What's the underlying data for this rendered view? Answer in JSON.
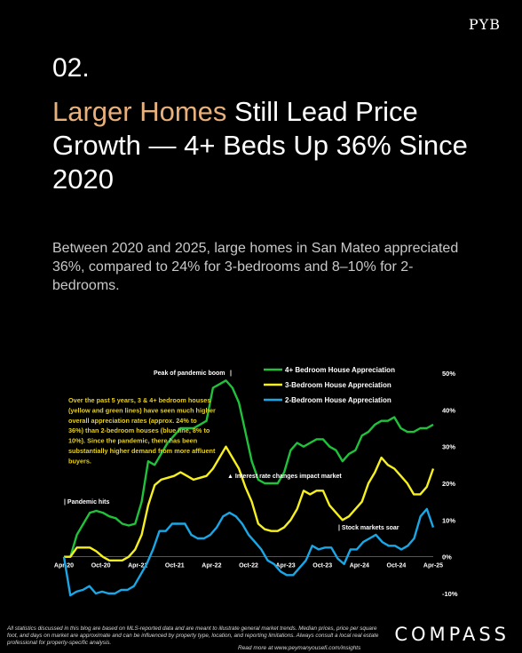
{
  "brand": {
    "logo": "PYB",
    "compass": "COMPASS"
  },
  "section_number": "02.",
  "headline": {
    "highlight": "Larger Homes",
    "rest": " Still Lead Price Growth — 4+ Beds Up 36% Since 2020"
  },
  "subtitle": "Between 2020 and 2025, large homes in San Mateo appreciated 36%, compared to 24% for 3-bedrooms and 8–10% for 2-bedrooms.",
  "footnote": "All statistics discussed in this blog are based on MLS-reported data and are meant to illustrate general market trends. Median prices, price per square foot, and days on market are approximate and can be influenced by property type, location, and reporting limitations. Always consult a local real estate professional for property-specific analysis.",
  "read_more": "Read more at www.peymanyousefi.com/insights",
  "colors": {
    "green": "#1fc23a",
    "yellow": "#f6f01e",
    "blue": "#1aa7e6",
    "accent": "#e8b07a",
    "annotation": "#e6cf1e"
  },
  "chart_data": {
    "type": "line",
    "x_ticks": [
      "Apr-20",
      "Oct-20",
      "Apr-21",
      "Oct-21",
      "Apr-22",
      "Oct-22",
      "Apr-23",
      "Oct-23",
      "Apr-24",
      "Oct-24",
      "Apr-25"
    ],
    "y_ticks": [
      "50%",
      "40%",
      "30%",
      "20%",
      "10%",
      "0%",
      "-10%"
    ],
    "ylim": [
      -10,
      50
    ],
    "y_unit": "%",
    "legend_position": "top-right",
    "series": [
      {
        "name": "4+ Bedroom House Appreciation",
        "color": "#1fc23a",
        "values": [
          0,
          0,
          6,
          9,
          12,
          12.5,
          12,
          11,
          10.5,
          9,
          8.5,
          9,
          15,
          26,
          25,
          28,
          31,
          33,
          35,
          35,
          35,
          36,
          37,
          46,
          47,
          48,
          46,
          42,
          34,
          26,
          21,
          20,
          20,
          20,
          23,
          29,
          31,
          30,
          31,
          32,
          32,
          30,
          29,
          26,
          28,
          29,
          33,
          34,
          36,
          37,
          37,
          38,
          35,
          34,
          34,
          35,
          35,
          36
        ]
      },
      {
        "name": "3-Bedroom House Appreciation",
        "color": "#f6f01e",
        "values": [
          0,
          0,
          2.5,
          2.5,
          2.5,
          1.5,
          0,
          -1,
          -1,
          -1,
          0,
          2,
          6,
          14,
          19.5,
          21,
          21.5,
          22,
          23,
          22,
          21,
          21.5,
          22,
          24,
          27,
          30,
          27,
          24,
          19,
          15,
          9,
          7.5,
          7,
          7,
          8,
          10,
          13,
          18,
          17,
          18,
          18,
          14,
          12,
          10,
          11,
          13,
          15,
          20,
          23,
          27,
          25,
          24,
          22,
          20,
          17,
          17,
          19,
          24
        ]
      },
      {
        "name": "2-Bedroom House Appreciation",
        "color": "#1aa7e6",
        "values": [
          0,
          -10.5,
          -9.5,
          -9,
          -8,
          -10,
          -9.5,
          -10,
          -10,
          -9,
          -9,
          -8,
          -5,
          -2,
          2,
          7,
          7,
          9,
          9,
          9,
          6,
          5,
          5,
          6,
          8,
          11,
          12,
          11,
          9,
          6,
          4,
          2,
          -1,
          -2,
          -4,
          -5,
          -5,
          -3,
          -1,
          3,
          2,
          2.5,
          2.5,
          -0.5,
          -2,
          2,
          2,
          4,
          5,
          6,
          4,
          3,
          3,
          2,
          3,
          5,
          11,
          13,
          8
        ]
      }
    ],
    "annotations": {
      "peak": "Peak of pandemic boom",
      "peak_bar": "|",
      "pandemic": "| Pandemic hits",
      "rates": "▲ Interest rate changes impact market",
      "stocks": "| Stock markets soar",
      "note": "Over the past 5 years, 3 & 4+ bedroom houses (yellow and green lines) have seen much higher overall appreciation rates (approx. 24% to 36%) than 2-bedroom houses (blue line, 8% to 10%). Since the pandemic, there has been substantially higher demand from more affluent buyers."
    }
  }
}
